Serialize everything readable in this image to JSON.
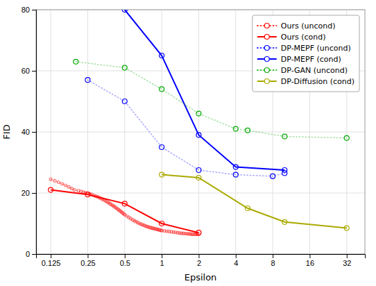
{
  "chart_data": {
    "type": "line",
    "xlabel": "Epsilon",
    "ylabel": "FID",
    "log": "x",
    "grid": true,
    "legend": "upper right",
    "xlim": [
      0.095,
      45
    ],
    "ylim": [
      0,
      80
    ],
    "xticks": [
      0.125,
      0.25,
      0.5,
      1,
      2,
      4,
      8,
      16,
      32
    ],
    "yticks": [
      0,
      20,
      40,
      60,
      80
    ],
    "series": [
      {
        "name": "Ours (uncond)",
        "color": "#FF0000",
        "line_style": "dotted",
        "marker": "circle",
        "x": [
          0.125,
          0.135,
          0.145,
          0.155,
          0.165,
          0.175,
          0.185,
          0.195,
          0.21,
          0.22,
          0.23,
          0.24,
          0.25,
          0.26,
          0.27,
          0.28,
          0.29,
          0.3,
          0.31,
          0.32,
          0.33,
          0.34,
          0.35,
          0.36,
          0.37,
          0.38,
          0.39,
          0.4,
          0.41,
          0.42,
          0.43,
          0.44,
          0.45,
          0.46,
          0.47,
          0.48,
          0.49,
          0.5,
          0.52,
          0.54,
          0.56,
          0.58,
          0.6,
          0.62,
          0.64,
          0.66,
          0.68,
          0.7,
          0.72,
          0.74,
          0.76,
          0.78,
          0.8,
          0.82,
          0.84,
          0.86,
          0.88,
          0.9,
          0.92,
          0.94,
          0.96,
          0.98,
          1.0,
          1.05,
          1.1,
          1.15,
          1.2,
          1.25,
          1.3,
          1.35,
          1.4,
          1.45,
          1.5,
          1.55,
          1.6,
          1.65,
          1.7,
          1.75,
          1.8,
          1.85,
          1.9,
          1.95,
          2.0
        ],
        "values": [
          24.5,
          24.0,
          23.5,
          23.0,
          22.5,
          22.0,
          21.5,
          21.0,
          20.8,
          20.5,
          20.3,
          20.1,
          19.9,
          19.7,
          19.5,
          19.2,
          19.0,
          18.8,
          18.5,
          18.2,
          18.0,
          17.7,
          17.4,
          17.1,
          16.8,
          16.5,
          16.2,
          15.9,
          15.6,
          15.3,
          15.0,
          14.7,
          14.4,
          14.1,
          13.8,
          13.5,
          13.2,
          12.9,
          12.5,
          12.0,
          11.6,
          11.2,
          10.9,
          10.6,
          10.3,
          10.0,
          9.8,
          9.6,
          9.4,
          9.2,
          9.0,
          8.9,
          8.7,
          8.6,
          8.5,
          8.4,
          8.3,
          8.2,
          8.1,
          8.0,
          7.9,
          7.8,
          7.7,
          7.6,
          7.5,
          7.4,
          7.3,
          7.2,
          7.1,
          7.0,
          6.9,
          6.8,
          6.8,
          6.7,
          6.7,
          6.6,
          6.6,
          6.5,
          6.5,
          6.5,
          6.5,
          6.5,
          6.5
        ]
      },
      {
        "name": "Ours (cond)",
        "color": "#FF0000",
        "line_style": "solid",
        "marker": "circle",
        "x": [
          0.125,
          0.25,
          0.5,
          1.0,
          2.0
        ],
        "values": [
          21.0,
          19.5,
          16.5,
          10.0,
          7.0
        ]
      },
      {
        "name": "DP-MEPF (uncond)",
        "color": "#0000FF",
        "line_style": "dotted",
        "marker": "circle",
        "x": [
          0.25,
          0.5,
          1.0,
          2.0,
          4.0,
          8.0,
          10.0
        ],
        "values": [
          57.0,
          50.0,
          35.0,
          27.5,
          26.0,
          25.5,
          26.5
        ]
      },
      {
        "name": "DP-MEPF (cond)",
        "color": "#0000FF",
        "line_style": "solid",
        "marker": "circle",
        "x": [
          0.5,
          1.0,
          2.0,
          4.0,
          10.0
        ],
        "values": [
          80.0,
          65.0,
          39.0,
          28.5,
          27.5
        ]
      },
      {
        "name": "DP-GAN (uncond)",
        "color": "#00AA00",
        "line_style": "dotted",
        "marker": "circle",
        "x": [
          0.2,
          0.5,
          1.0,
          2.0,
          4.0,
          5.0,
          10.0,
          32.0
        ],
        "values": [
          63.0,
          61.0,
          54.0,
          46.0,
          41.0,
          40.5,
          38.5,
          38.0
        ]
      },
      {
        "name": "DP-Diffusion (cond)",
        "color": "#AAAA00",
        "line_style": "solid",
        "marker": "circle",
        "x": [
          1.0,
          2.0,
          5.0,
          10.0,
          32.0
        ],
        "values": [
          26.0,
          25.0,
          15.0,
          10.5,
          8.5
        ]
      }
    ]
  }
}
